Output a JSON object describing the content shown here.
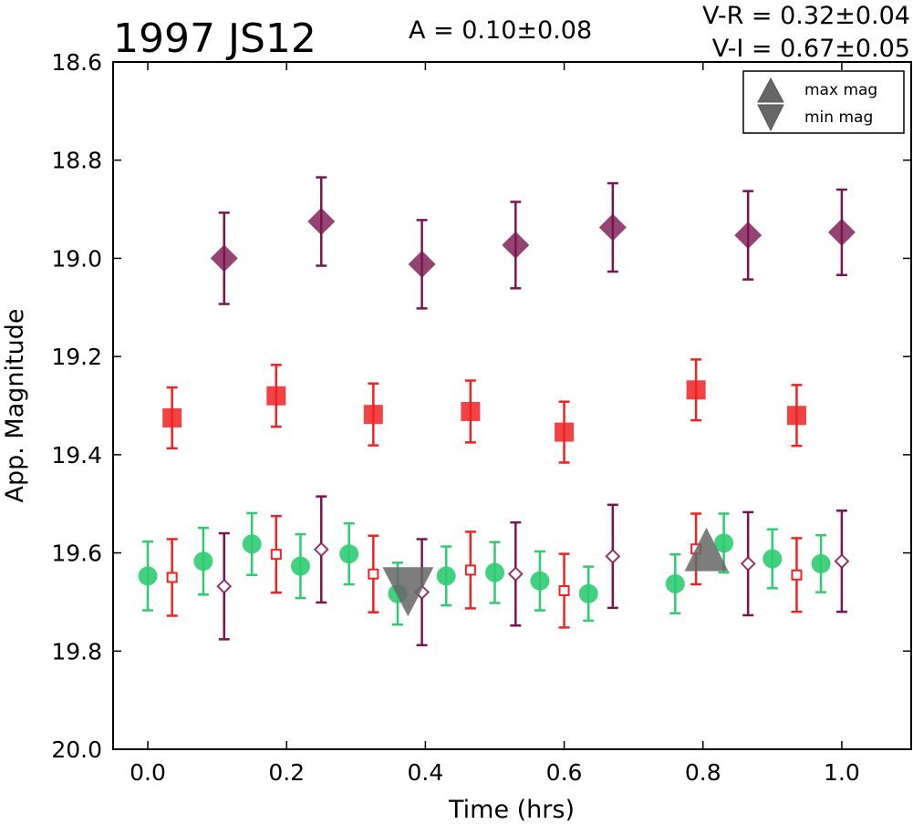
{
  "chart_data": {
    "type": "scatter",
    "title": "1997 JS12",
    "annotations": {
      "amplitude": "A  = 0.10±0.08",
      "v_r": "V-R = 0.32±0.04",
      "v_i": "V-I  = 0.67±0.05"
    },
    "xlabel": "Time (hrs)",
    "ylabel": "App. Magnitude",
    "xlim": [
      -0.05,
      1.1
    ],
    "ylim": [
      20.0,
      18.6
    ],
    "y_inverted": true,
    "xticks": [
      "0.0",
      "0.2",
      "0.4",
      "0.6",
      "0.8",
      "1.0"
    ],
    "yticks": [
      "18.6",
      "18.8",
      "19.0",
      "19.2",
      "19.4",
      "19.6",
      "19.8",
      "20.0"
    ],
    "grid": false,
    "legend": {
      "placement": "top-right",
      "entries": [
        {
          "label": "max mag",
          "marker": "triangle-up"
        },
        {
          "label": "min mag",
          "marker": "triangle-down"
        }
      ]
    },
    "colors": {
      "V": "#2ecc71",
      "R": "#ee2222",
      "I": "#7a1450",
      "extrema": "#666666"
    },
    "series": [
      {
        "marker": "filled-circle",
        "color": "#2ecc71",
        "points": [
          [
            0.0,
            19.647,
            0.07
          ],
          [
            0.08,
            19.617,
            0.068
          ],
          [
            0.15,
            19.582,
            0.063
          ],
          [
            0.22,
            19.627,
            0.065
          ],
          [
            0.29,
            19.602,
            0.062
          ],
          [
            0.36,
            19.683,
            0.063
          ],
          [
            0.43,
            19.647,
            0.06
          ],
          [
            0.5,
            19.64,
            0.062
          ],
          [
            0.565,
            19.657,
            0.06
          ],
          [
            0.635,
            19.683,
            0.055
          ],
          [
            0.76,
            19.663,
            0.06
          ],
          [
            0.83,
            19.58,
            0.06
          ],
          [
            0.9,
            19.612,
            0.06
          ],
          [
            0.97,
            19.622,
            0.058
          ]
        ]
      },
      {
        "marker": "open-square",
        "color": "#ee2222",
        "points": [
          [
            0.035,
            19.65,
            0.078
          ],
          [
            0.185,
            19.603,
            0.078
          ],
          [
            0.325,
            19.643,
            0.078
          ],
          [
            0.465,
            19.635,
            0.078
          ],
          [
            0.6,
            19.677,
            0.075
          ],
          [
            0.79,
            19.592,
            0.072
          ],
          [
            0.935,
            19.645,
            0.075
          ]
        ]
      },
      {
        "marker": "open-diamond",
        "color": "#7a1450",
        "points": [
          [
            0.11,
            19.668,
            0.108
          ],
          [
            0.25,
            19.593,
            0.108
          ],
          [
            0.395,
            19.68,
            0.108
          ],
          [
            0.53,
            19.643,
            0.105
          ],
          [
            0.67,
            19.607,
            0.105
          ],
          [
            0.865,
            19.622,
            0.105
          ],
          [
            1.0,
            19.617,
            0.103
          ]
        ]
      },
      {
        "marker": "filled-square",
        "color": "#ee2222",
        "points": [
          [
            0.035,
            19.325,
            0.062
          ],
          [
            0.185,
            19.28,
            0.063
          ],
          [
            0.325,
            19.318,
            0.063
          ],
          [
            0.465,
            19.312,
            0.063
          ],
          [
            0.6,
            19.354,
            0.062
          ],
          [
            0.79,
            19.268,
            0.062
          ],
          [
            0.935,
            19.32,
            0.062
          ]
        ]
      },
      {
        "marker": "filled-diamond",
        "color": "#7a1450",
        "points": [
          [
            0.11,
            19.0,
            0.093
          ],
          [
            0.25,
            18.925,
            0.09
          ],
          [
            0.395,
            19.012,
            0.09
          ],
          [
            0.53,
            18.973,
            0.088
          ],
          [
            0.67,
            18.937,
            0.09
          ],
          [
            0.865,
            18.953,
            0.09
          ],
          [
            1.0,
            18.947,
            0.087
          ]
        ]
      }
    ],
    "extrema": [
      {
        "type": "max",
        "x": 0.805,
        "y": 19.6
      },
      {
        "type": "min",
        "x": 0.375,
        "y": 19.67
      }
    ]
  }
}
